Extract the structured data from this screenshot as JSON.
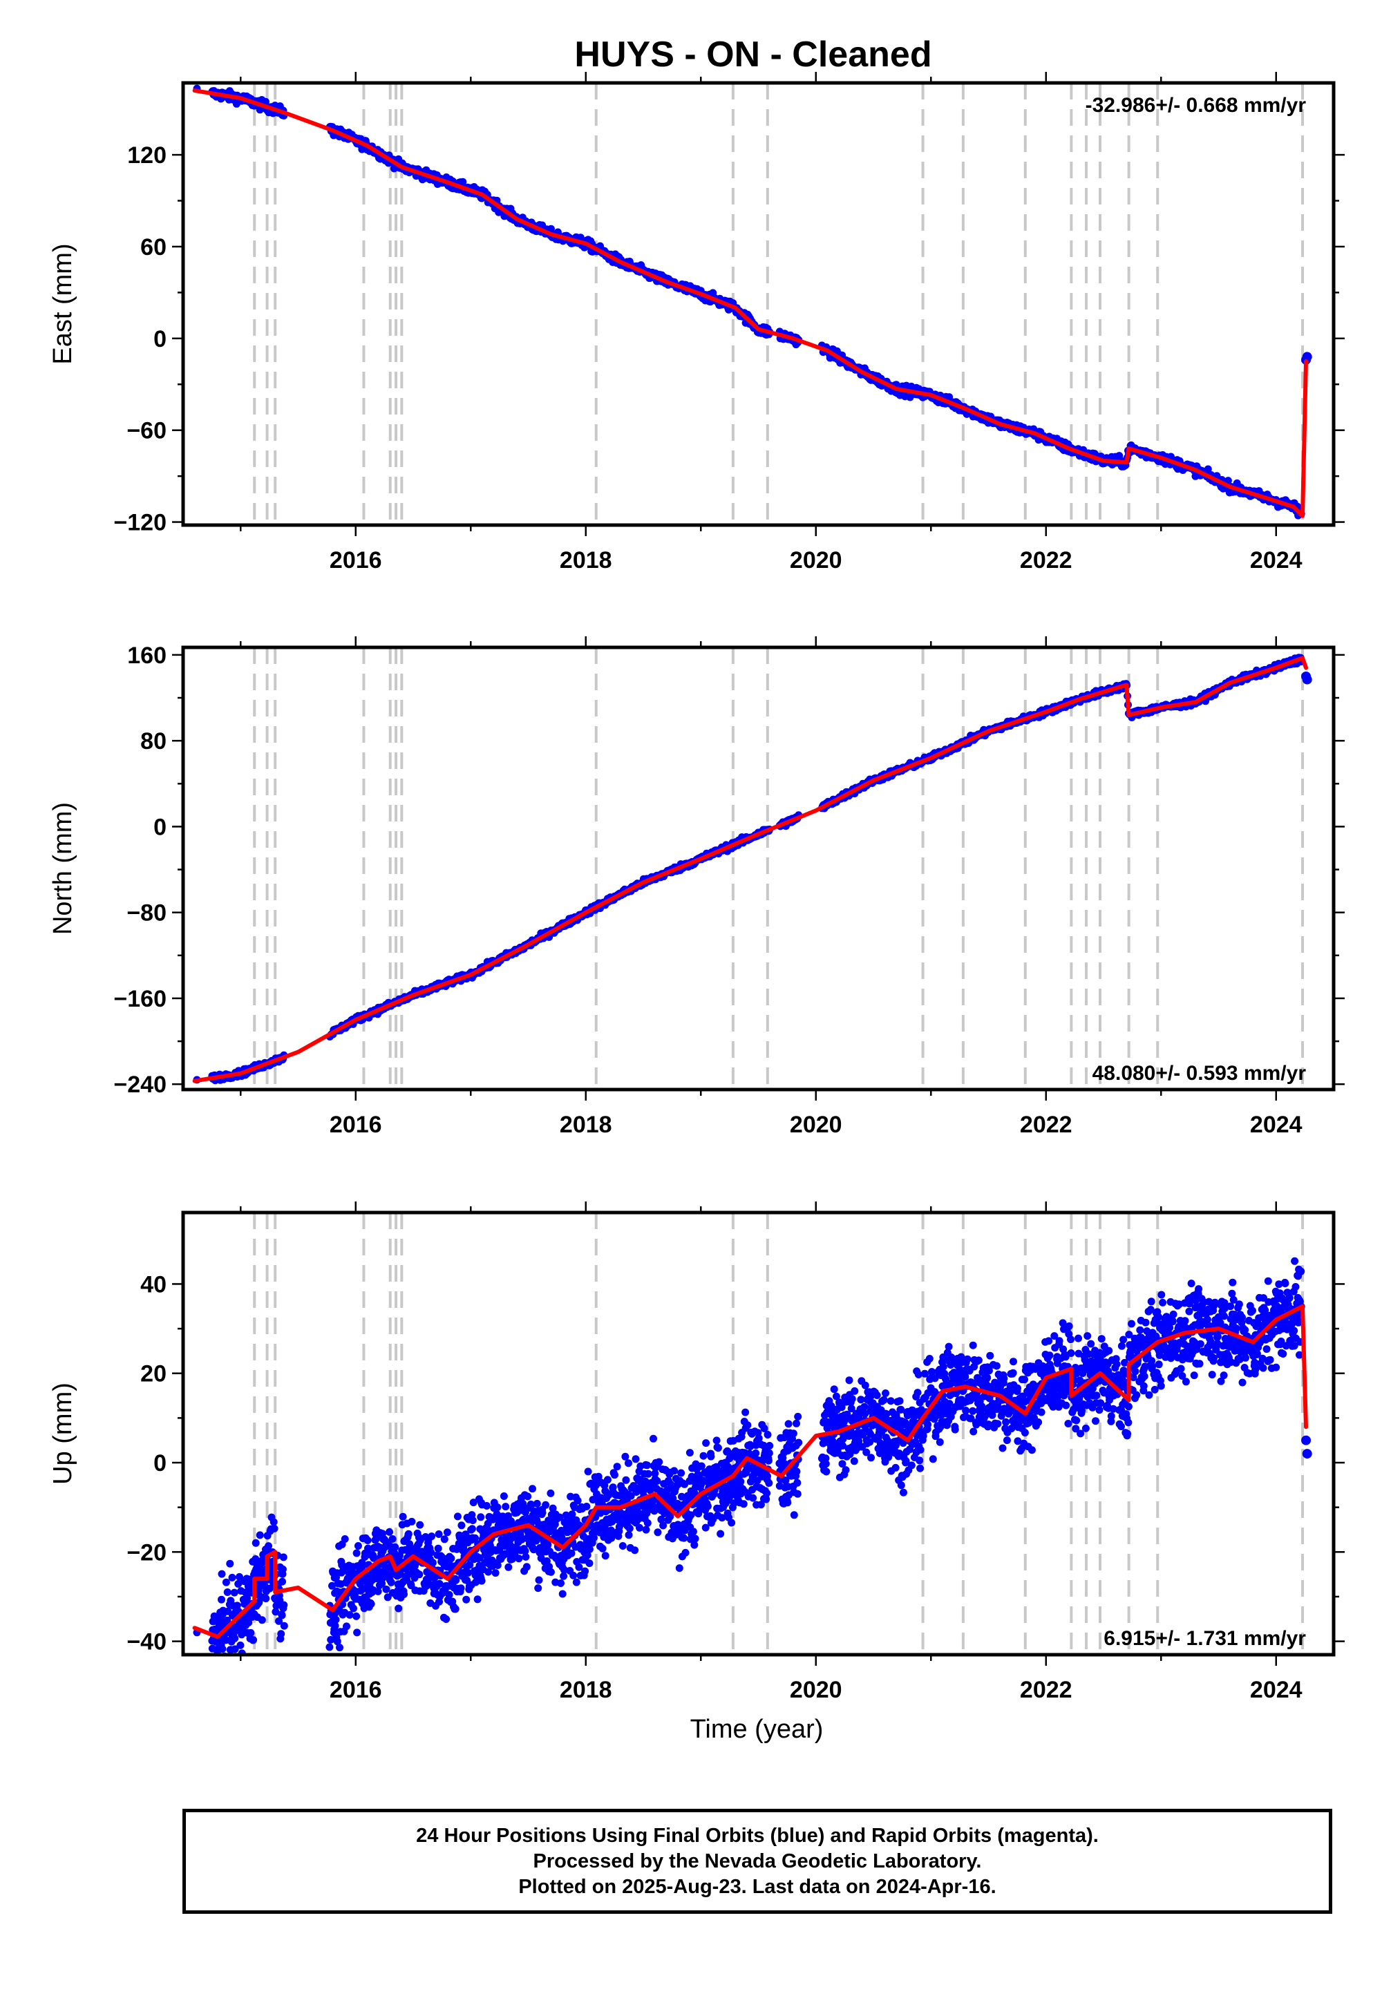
{
  "title": "HUYS  - ON - Cleaned",
  "xlabel": "Time (year)",
  "footer": {
    "line1": "24 Hour Positions Using Final Orbits (blue) and Rapid Orbits (magenta).",
    "line2": "Processed by the Nevada Geodetic Laboratory.",
    "line3": "Plotted on 2025-Aug-23. Last data on 2024-Apr-16."
  },
  "colors": {
    "points": "#0000ff",
    "fit": "#ff0000",
    "events": "#c8c8c8"
  },
  "chart_data": [
    {
      "type": "scatter",
      "name": "east",
      "ylabel": "East (mm)",
      "rate_label": "-32.986+/- 0.668 mm/yr",
      "xlim": [
        2014.5,
        2024.5
      ],
      "ylim": [
        -122,
        167
      ],
      "xticks": [
        2016,
        2018,
        2020,
        2022,
        2024
      ],
      "yticks": [
        -120,
        -60,
        0,
        60,
        120
      ],
      "event_lines": [
        2015.12,
        2015.23,
        2015.3,
        2016.07,
        2016.3,
        2016.35,
        2016.4,
        2018.09,
        2019.28,
        2019.58,
        2020.93,
        2021.28,
        2021.82,
        2022.22,
        2022.35,
        2022.47,
        2022.72,
        2022.97,
        2024.23
      ],
      "fit_line": [
        [
          2014.6,
          162
        ],
        [
          2015.0,
          157
        ],
        [
          2015.4,
          147
        ],
        [
          2015.8,
          136
        ],
        [
          2016.1,
          126
        ],
        [
          2016.4,
          112
        ],
        [
          2016.8,
          102
        ],
        [
          2017.1,
          94
        ],
        [
          2017.4,
          78
        ],
        [
          2017.7,
          68
        ],
        [
          2018.0,
          62
        ],
        [
          2018.3,
          50
        ],
        [
          2018.7,
          37
        ],
        [
          2019.0,
          29
        ],
        [
          2019.3,
          20
        ],
        [
          2019.5,
          6
        ],
        [
          2019.8,
          0
        ],
        [
          2020.1,
          -8
        ],
        [
          2020.4,
          -22
        ],
        [
          2020.7,
          -33
        ],
        [
          2021.0,
          -37
        ],
        [
          2021.3,
          -46
        ],
        [
          2021.6,
          -56
        ],
        [
          2021.9,
          -62
        ],
        [
          2022.2,
          -72
        ],
        [
          2022.5,
          -80
        ],
        [
          2022.7,
          -81
        ],
        [
          2022.72,
          -72
        ],
        [
          2023.0,
          -78
        ],
        [
          2023.3,
          -86
        ],
        [
          2023.6,
          -97
        ],
        [
          2023.9,
          -104
        ],
        [
          2024.15,
          -110
        ],
        [
          2024.23,
          -116
        ],
        [
          2024.26,
          -15
        ]
      ],
      "scatter_noise_mm": 2.2,
      "last_points": [
        -14,
        -12
      ]
    },
    {
      "type": "scatter",
      "name": "north",
      "ylabel": "North (mm)",
      "rate_label": "48.080+/- 0.593 mm/yr",
      "xlim": [
        2014.5,
        2024.5
      ],
      "ylim": [
        -245,
        167
      ],
      "xticks": [
        2016,
        2018,
        2020,
        2022,
        2024
      ],
      "yticks": [
        -240,
        -160,
        -80,
        0,
        80,
        160
      ],
      "event_lines": [
        2015.12,
        2015.23,
        2015.3,
        2016.07,
        2016.3,
        2016.35,
        2016.4,
        2018.09,
        2019.28,
        2019.58,
        2020.93,
        2021.28,
        2021.82,
        2022.22,
        2022.35,
        2022.47,
        2022.72,
        2022.97,
        2024.23
      ],
      "fit_line": [
        [
          2014.6,
          -237
        ],
        [
          2015.0,
          -230
        ],
        [
          2015.5,
          -210
        ],
        [
          2016.0,
          -180
        ],
        [
          2016.5,
          -157
        ],
        [
          2017.0,
          -138
        ],
        [
          2017.5,
          -110
        ],
        [
          2018.0,
          -80
        ],
        [
          2018.5,
          -52
        ],
        [
          2019.0,
          -30
        ],
        [
          2019.5,
          -7
        ],
        [
          2020.0,
          15
        ],
        [
          2020.5,
          43
        ],
        [
          2021.0,
          64
        ],
        [
          2021.5,
          89
        ],
        [
          2022.0,
          107
        ],
        [
          2022.3,
          119
        ],
        [
          2022.7,
          132
        ],
        [
          2022.72,
          104
        ],
        [
          2023.0,
          111
        ],
        [
          2023.3,
          116
        ],
        [
          2023.6,
          134
        ],
        [
          2024.0,
          148
        ],
        [
          2024.23,
          157
        ],
        [
          2024.26,
          148
        ]
      ],
      "scatter_noise_mm": 2.0,
      "last_points": [
        140,
        137
      ]
    },
    {
      "type": "scatter",
      "name": "up",
      "ylabel": "Up (mm)",
      "rate_label": "6.915+/- 1.731 mm/yr",
      "xlim": [
        2014.5,
        2024.5
      ],
      "ylim": [
        -43,
        56
      ],
      "xticks": [
        2016,
        2018,
        2020,
        2022,
        2024
      ],
      "yticks": [
        -40,
        -20,
        0,
        20,
        40
      ],
      "event_lines": [
        2015.12,
        2015.23,
        2015.3,
        2016.07,
        2016.3,
        2016.35,
        2016.4,
        2018.09,
        2019.28,
        2019.58,
        2020.93,
        2021.28,
        2021.82,
        2022.22,
        2022.35,
        2022.47,
        2022.72,
        2022.97,
        2024.23
      ],
      "fit_line": [
        [
          2014.6,
          -37
        ],
        [
          2014.8,
          -39
        ],
        [
          2015.0,
          -34
        ],
        [
          2015.12,
          -31
        ],
        [
          2015.12,
          -26
        ],
        [
          2015.23,
          -26
        ],
        [
          2015.23,
          -21
        ],
        [
          2015.3,
          -20
        ],
        [
          2015.3,
          -29
        ],
        [
          2015.5,
          -28
        ],
        [
          2015.8,
          -33
        ],
        [
          2016.0,
          -26
        ],
        [
          2016.2,
          -22
        ],
        [
          2016.3,
          -21
        ],
        [
          2016.35,
          -24
        ],
        [
          2016.5,
          -21
        ],
        [
          2016.8,
          -26
        ],
        [
          2017.0,
          -20
        ],
        [
          2017.2,
          -16
        ],
        [
          2017.5,
          -14
        ],
        [
          2017.8,
          -19
        ],
        [
          2018.0,
          -14
        ],
        [
          2018.09,
          -10
        ],
        [
          2018.3,
          -10
        ],
        [
          2018.6,
          -7
        ],
        [
          2018.8,
          -12
        ],
        [
          2019.0,
          -7
        ],
        [
          2019.28,
          -3
        ],
        [
          2019.4,
          1
        ],
        [
          2019.7,
          -3
        ],
        [
          2020.0,
          6
        ],
        [
          2020.2,
          7
        ],
        [
          2020.5,
          10
        ],
        [
          2020.8,
          5
        ],
        [
          2020.93,
          10
        ],
        [
          2021.1,
          16
        ],
        [
          2021.3,
          17
        ],
        [
          2021.6,
          15
        ],
        [
          2021.82,
          11
        ],
        [
          2022.0,
          19
        ],
        [
          2022.22,
          21
        ],
        [
          2022.22,
          15
        ],
        [
          2022.47,
          20
        ],
        [
          2022.72,
          14
        ],
        [
          2022.72,
          22
        ],
        [
          2022.97,
          27
        ],
        [
          2023.2,
          29
        ],
        [
          2023.5,
          30
        ],
        [
          2023.8,
          27
        ],
        [
          2024.0,
          32
        ],
        [
          2024.23,
          35
        ],
        [
          2024.26,
          8
        ]
      ],
      "scatter_noise_mm": 6.5,
      "last_points": [
        5,
        2
      ]
    }
  ]
}
